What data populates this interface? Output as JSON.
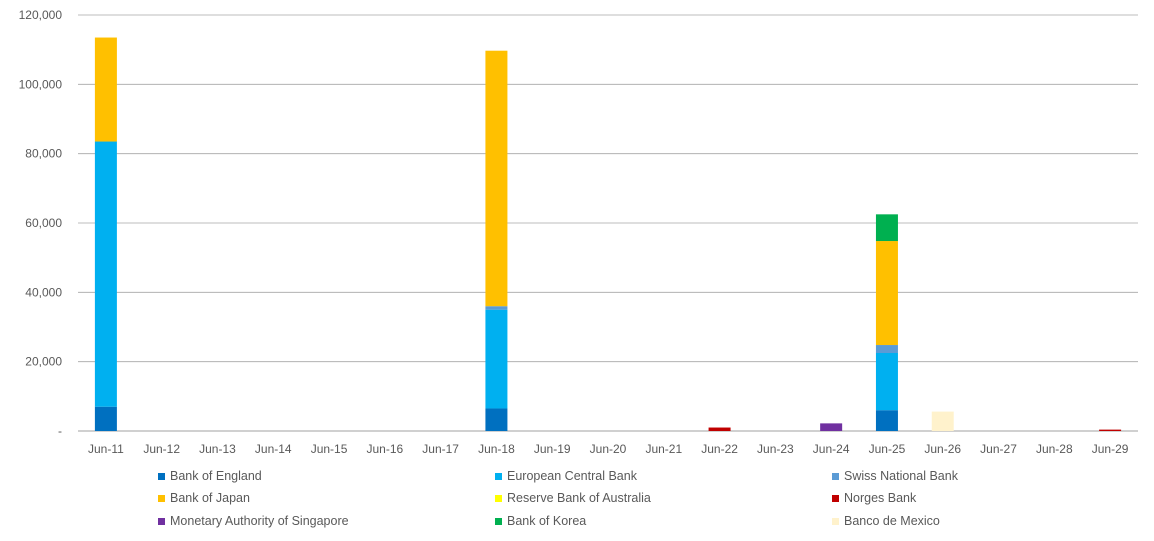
{
  "chart_data": {
    "type": "bar",
    "stacked": true,
    "categories": [
      "Jun-11",
      "Jun-12",
      "Jun-13",
      "Jun-14",
      "Jun-15",
      "Jun-16",
      "Jun-17",
      "Jun-18",
      "Jun-19",
      "Jun-20",
      "Jun-21",
      "Jun-22",
      "Jun-23",
      "Jun-24",
      "Jun-25",
      "Jun-26",
      "Jun-27",
      "Jun-28",
      "Jun-29"
    ],
    "y_ticks": [
      "-",
      "20,000",
      "40,000",
      "60,000",
      "80,000",
      "100,000",
      "120,000"
    ],
    "ylim": [
      0,
      120000
    ],
    "grid": true,
    "legend_position": "bottom",
    "series": [
      {
        "name": "Bank of England",
        "color": "#0070C0",
        "values": [
          7000,
          0,
          0,
          0,
          0,
          0,
          0,
          6500,
          0,
          0,
          0,
          0,
          0,
          0,
          6000,
          0,
          0,
          0,
          0
        ]
      },
      {
        "name": "European Central Bank",
        "color": "#00B0F0",
        "values": [
          76500,
          0,
          0,
          0,
          0,
          0,
          0,
          28500,
          0,
          0,
          0,
          0,
          0,
          0,
          16500,
          0,
          0,
          0,
          0
        ]
      },
      {
        "name": "Swiss National Bank",
        "color": "#5B9BD5",
        "values": [
          0,
          0,
          0,
          0,
          0,
          0,
          0,
          1000,
          0,
          0,
          0,
          0,
          0,
          0,
          2300,
          0,
          0,
          0,
          0
        ]
      },
      {
        "name": "Bank of Japan",
        "color": "#FFC000",
        "values": [
          30000,
          0,
          0,
          0,
          0,
          0,
          0,
          73700,
          0,
          0,
          0,
          0,
          0,
          0,
          30000,
          0,
          0,
          0,
          0
        ]
      },
      {
        "name": "Reserve Bank of Australia",
        "color": "#FFFF00",
        "values": [
          0,
          0,
          0,
          0,
          0,
          0,
          0,
          0,
          0,
          0,
          0,
          0,
          0,
          0,
          0,
          0,
          0,
          0,
          0
        ]
      },
      {
        "name": "Norges Bank",
        "color": "#C00000",
        "values": [
          0,
          0,
          0,
          0,
          0,
          0,
          0,
          0,
          0,
          0,
          0,
          1000,
          0,
          0,
          0,
          0,
          0,
          0,
          400
        ]
      },
      {
        "name": "Monetary Authority of Singapore",
        "color": "#7030A0",
        "values": [
          0,
          0,
          0,
          0,
          0,
          0,
          0,
          0,
          0,
          0,
          0,
          0,
          0,
          2200,
          0,
          0,
          0,
          0,
          0
        ]
      },
      {
        "name": "Bank of Korea",
        "color": "#00B050",
        "values": [
          0,
          0,
          0,
          0,
          0,
          0,
          0,
          0,
          0,
          0,
          0,
          0,
          0,
          0,
          7700,
          0,
          0,
          0,
          0
        ]
      },
      {
        "name": "Banco de Mexico",
        "color": "#FFF2CC",
        "values": [
          0,
          0,
          0,
          0,
          0,
          0,
          0,
          0,
          0,
          0,
          0,
          0,
          0,
          0,
          0,
          5600,
          0,
          0,
          0
        ]
      }
    ]
  }
}
